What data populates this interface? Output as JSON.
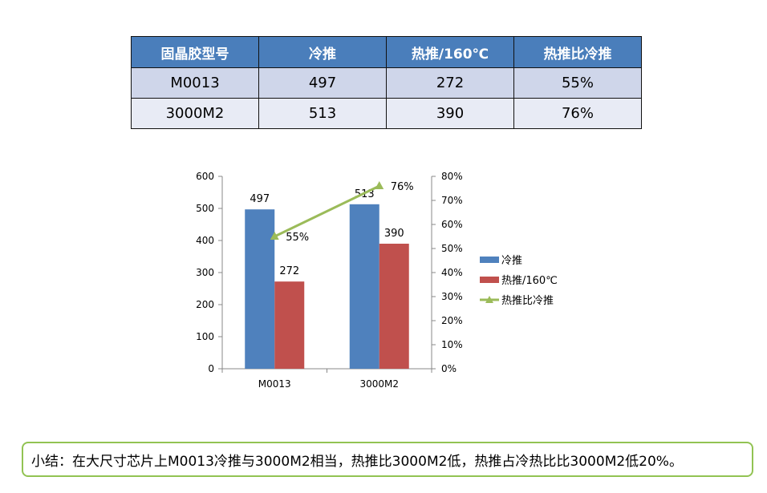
{
  "table": {
    "headers": [
      "固晶胶型号",
      "冷推",
      "热推/160℃",
      "热推比冷推"
    ],
    "rows": [
      [
        "M0013",
        "497",
        "272",
        "55%"
      ],
      [
        "3000M2",
        "513",
        "390",
        "76%"
      ]
    ]
  },
  "chart_data": {
    "type": "bar",
    "categories": [
      "M0013",
      "3000M2"
    ],
    "series": [
      {
        "name": "冷推",
        "type": "bar",
        "values": [
          497,
          513
        ],
        "labels": [
          "497",
          "513"
        ],
        "color": "#4f81bd"
      },
      {
        "name": "热推/160℃",
        "type": "bar",
        "values": [
          272,
          390
        ],
        "labels": [
          "272",
          "390"
        ],
        "color": "#c0504d"
      },
      {
        "name": "热推比冷推",
        "type": "line",
        "axis": "secondary",
        "values": [
          0.55,
          0.76
        ],
        "labels": [
          "55%",
          "76%"
        ],
        "color": "#9bbb59"
      }
    ],
    "y_ticks": [
      "0",
      "100",
      "200",
      "300",
      "400",
      "500",
      "600"
    ],
    "ylim": [
      0,
      600
    ],
    "y2_ticks": [
      "0%",
      "10%",
      "20%",
      "30%",
      "40%",
      "50%",
      "60%",
      "70%",
      "80%"
    ],
    "y2lim": [
      0,
      0.8
    ],
    "legend_position": "right",
    "grid": false
  },
  "summary": "小结：在大尺寸芯片上M0013冷推与3000M2相当，热推比3000M2低，热推占冷热比比3000M2低20%。"
}
